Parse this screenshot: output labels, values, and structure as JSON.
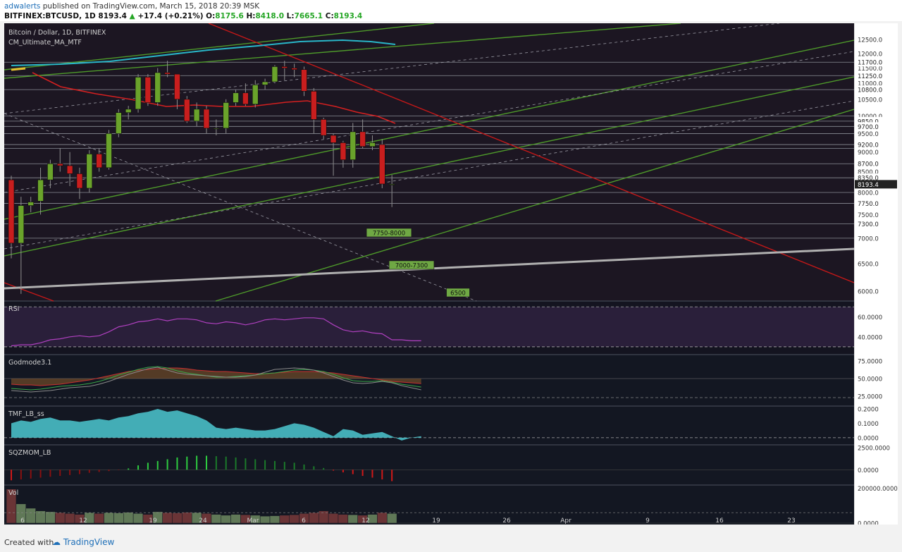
{
  "header": {
    "author": "adwalerts",
    "published_text": "published on TradingView.com, March 15, 2018 20:39 MSK",
    "symbol": "BITFINEX:BTCUSD, 1D",
    "last": "8193.4",
    "change": "+17.4 (+0.21%)",
    "o_label": "O:",
    "o_value": "8175.6",
    "h_label": "H:",
    "h_value": "8418.0",
    "l_label": "L:",
    "l_value": "7665.1",
    "c_label": "C:",
    "c_value": "8193.4"
  },
  "footer": {
    "created_with": "Created with",
    "brand": "TradingView"
  },
  "colors": {
    "up": "#6aa32b",
    "down": "#c81e1e",
    "channel": "#4e9a2a",
    "resistance": "#c41818",
    "ma_cyan": "#29b6c8",
    "ma_red": "#d42020",
    "support": "#b0b0b0",
    "rsi": "#b040c0",
    "tmf": "#4cc8d0",
    "pane_bg": "#131722"
  },
  "chart_data": [
    {
      "type": "candlestick",
      "title": "Bitcoin / Dollar, 1D, BITFINEX",
      "indicator": "CM_Ultimate_MA_MTF",
      "y_scale": "log",
      "ylim": [
        5900,
        13000
      ],
      "x_ticks": [
        "6",
        "12",
        "19",
        "24",
        "Mar",
        "6",
        "12",
        "19",
        "26",
        "Apr",
        "9",
        "16",
        "23"
      ],
      "y_ticks": [
        "12500.0",
        "12000.0",
        "11500.0",
        "11000.0",
        "10500.0",
        "10000.0",
        "9500.0",
        "9000.0",
        "8500.0",
        "8000.0",
        "7500.0",
        "7000.0",
        "6500.0",
        "6000.0"
      ],
      "price_levels": [
        "11700.0",
        "11250.0",
        "10800.0",
        "9850.0",
        "9700.0",
        "9200.0",
        "8700.0",
        "8350.0",
        "7750.0",
        "7300.0"
      ],
      "current_price": "8193.4",
      "annotations": [
        "7750-8000",
        "7000-7300",
        "6500"
      ],
      "ohlc": [
        [
          8300,
          8400,
          6600,
          6900
        ],
        [
          6900,
          7900,
          5950,
          7700
        ],
        [
          7700,
          7900,
          7550,
          7780
        ],
        [
          7800,
          8600,
          7500,
          8300
        ],
        [
          8300,
          8800,
          8100,
          8700
        ],
        [
          8700,
          9100,
          8500,
          8650
        ],
        [
          8650,
          9000,
          8150,
          8450
        ],
        [
          8450,
          8600,
          7850,
          8100
        ],
        [
          8100,
          9050,
          8000,
          8950
        ],
        [
          8950,
          9100,
          8500,
          8600
        ],
        [
          8600,
          9600,
          8550,
          9500
        ],
        [
          9500,
          10200,
          9400,
          10100
        ],
        [
          10100,
          10300,
          9900,
          10200
        ],
        [
          10200,
          11300,
          10100,
          11200
        ],
        [
          11200,
          11300,
          10300,
          10400
        ],
        [
          10400,
          11500,
          10300,
          11350
        ],
        [
          11350,
          11750,
          11200,
          11300
        ],
        [
          11300,
          11300,
          10200,
          10500
        ],
        [
          10500,
          10600,
          9800,
          9850
        ],
        [
          9850,
          10400,
          9700,
          10200
        ],
        [
          10200,
          10300,
          9500,
          9650
        ],
        [
          9650,
          9900,
          9450,
          9650
        ],
        [
          9650,
          10500,
          9500,
          10400
        ],
        [
          10400,
          10800,
          10300,
          10700
        ],
        [
          10700,
          11000,
          10300,
          10350
        ],
        [
          10350,
          11100,
          10250,
          10950
        ],
        [
          10950,
          11150,
          10800,
          11050
        ],
        [
          11050,
          11600,
          11000,
          11550
        ],
        [
          11550,
          11750,
          11100,
          11500
        ],
        [
          11500,
          11650,
          11200,
          11450
        ],
        [
          11450,
          11550,
          10600,
          10750
        ],
        [
          10750,
          10850,
          9500,
          9900
        ],
        [
          9900,
          9950,
          9350,
          9450
        ],
        [
          9450,
          9500,
          8400,
          9250
        ],
        [
          9250,
          9300,
          8600,
          8800
        ],
        [
          8800,
          9800,
          8600,
          9550
        ],
        [
          9550,
          9900,
          9100,
          9150
        ],
        [
          9150,
          9450,
          9050,
          9250
        ],
        [
          9200,
          9350,
          8100,
          8200
        ],
        [
          8175.6,
          8418,
          7665.1,
          8193.4
        ]
      ]
    },
    {
      "type": "line",
      "title": "RSI",
      "y_ticks": [
        "60.0000",
        "40.0000"
      ],
      "ylim": [
        25,
        73
      ],
      "values": [
        31,
        32,
        32,
        34,
        37,
        38,
        40,
        41,
        40,
        41,
        45,
        50,
        52,
        55,
        56,
        58,
        56,
        58,
        58,
        57,
        54,
        53,
        55,
        54,
        52,
        54,
        57,
        58,
        57,
        58,
        59,
        59,
        58,
        52,
        47,
        45,
        46,
        44,
        43,
        37,
        37,
        36,
        36
      ]
    },
    {
      "type": "line",
      "title": "Godmode3.1",
      "y_ticks": [
        "75.0000",
        "50.0000",
        "25.0000"
      ],
      "ylim": [
        15,
        80
      ],
      "series": [
        {
          "values": [
            42,
            41,
            41,
            40,
            41,
            42,
            44,
            46,
            48,
            51,
            54,
            57,
            60,
            62,
            63,
            64,
            65,
            65,
            64,
            62,
            61,
            60,
            60,
            59,
            58,
            57,
            57,
            58,
            59,
            60,
            60,
            60,
            59,
            58,
            56,
            54,
            52,
            50,
            48,
            46,
            45,
            44,
            43
          ]
        },
        {
          "values": [
            36,
            35,
            34,
            35,
            37,
            39,
            40,
            41,
            43,
            46,
            50,
            55,
            59,
            63,
            66,
            67,
            65,
            61,
            58,
            56,
            54,
            52,
            52,
            53,
            54,
            55,
            57,
            58,
            60,
            62,
            63,
            62,
            60,
            56,
            51,
            47,
            46,
            46,
            47,
            45,
            42,
            40,
            38
          ]
        },
        {
          "values": [
            33,
            32,
            31,
            32,
            33,
            35,
            37,
            38,
            39,
            42,
            46,
            51,
            56,
            60,
            64,
            66,
            62,
            58,
            56,
            55,
            54,
            53,
            52,
            52,
            53,
            55,
            59,
            63,
            64,
            65,
            64,
            62,
            58,
            53,
            48,
            44,
            43,
            44,
            46,
            44,
            40,
            37,
            34
          ]
        }
      ]
    },
    {
      "type": "area",
      "title": "TMF_LB_ss",
      "y_ticks": [
        "0.2000",
        "0.1000",
        "0.0000"
      ],
      "ylim": [
        -0.04,
        0.21
      ],
      "values": [
        0.1,
        0.12,
        0.11,
        0.13,
        0.14,
        0.12,
        0.12,
        0.11,
        0.12,
        0.13,
        0.12,
        0.14,
        0.15,
        0.17,
        0.18,
        0.2,
        0.18,
        0.19,
        0.17,
        0.15,
        0.12,
        0.07,
        0.06,
        0.07,
        0.06,
        0.05,
        0.05,
        0.06,
        0.08,
        0.1,
        0.09,
        0.07,
        0.04,
        0.01,
        0.06,
        0.05,
        0.02,
        0.03,
        0.04,
        0.01,
        -0.02,
        0.0,
        0.01
      ]
    },
    {
      "type": "bar",
      "title": "SQZMOM_LB",
      "y_ticks": [
        "2500.0000",
        "0.0000"
      ],
      "ylim": [
        -1500,
        2600
      ],
      "values": [
        -1200,
        -1100,
        -1000,
        -900,
        -800,
        -700,
        -600,
        -500,
        -350,
        -250,
        -150,
        -50,
        150,
        500,
        800,
        1000,
        1200,
        1400,
        1500,
        1600,
        1600,
        1550,
        1500,
        1400,
        1300,
        1200,
        1100,
        1000,
        900,
        800,
        600,
        400,
        200,
        -100,
        -300,
        -500,
        -700,
        -900,
        -1100,
        -1300
      ]
    },
    {
      "type": "bar",
      "title": "Vol",
      "y_ticks": [
        "200000.0000",
        "0.0000"
      ],
      "ylim": [
        0,
        210000
      ],
      "values": [
        195000,
        110000,
        85000,
        70000,
        65000,
        60000,
        55000,
        50000,
        60000,
        55000,
        60000,
        58000,
        62000,
        55000,
        50000,
        65000,
        60000,
        58000,
        62000,
        60000,
        55000,
        50000,
        45000,
        50000,
        48000,
        45000,
        40000,
        42000,
        45000,
        48000,
        55000,
        60000,
        70000,
        55000,
        50000,
        48000,
        45000,
        50000,
        60000,
        55000
      ]
    }
  ]
}
